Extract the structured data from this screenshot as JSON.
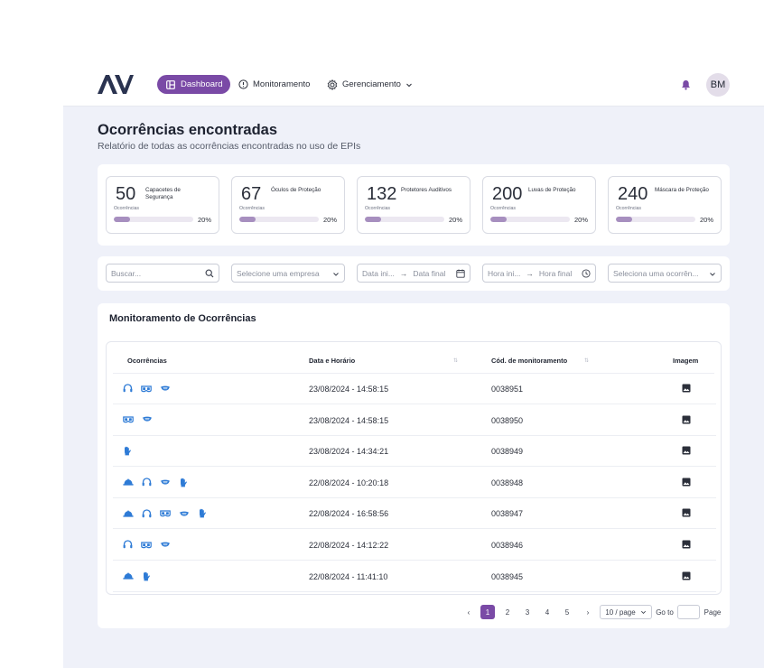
{
  "brand": {
    "logo": "AV",
    "accent": "#7a4aa6",
    "icon_color": "#2e7bd6"
  },
  "nav": {
    "dashboard": "Dashboard",
    "monitoramento": "Monitoramento",
    "gerenciamento": "Gerenciamento",
    "user_initials": "BM"
  },
  "page": {
    "title": "Ocorrências encontradas",
    "subtitle": "Relatório de todas as ocorrências encontradas no uso de EPIs"
  },
  "stats": [
    {
      "value": "50",
      "label": "Capacetes de Segurança",
      "sub": "Ocorrências",
      "percent": "20%",
      "fill": 0.2
    },
    {
      "value": "67",
      "label": "Óculos de Proteção",
      "sub": "Ocorrências",
      "percent": "20%",
      "fill": 0.2
    },
    {
      "value": "132",
      "label": "Protetores Auditivos",
      "sub": "Ocorrências",
      "percent": "20%",
      "fill": 0.2
    },
    {
      "value": "200",
      "label": "Luvas de Proteção",
      "sub": "Ocorrências",
      "percent": "20%",
      "fill": 0.2
    },
    {
      "value": "240",
      "label": "Máscara de Proteção",
      "sub": "Ocorrências",
      "percent": "20%",
      "fill": 0.2
    }
  ],
  "filters": {
    "search_placeholder": "Buscar...",
    "company_placeholder": "Selecione uma empresa",
    "date_start": "Data ini...",
    "date_end": "Data final",
    "time_start": "Hora ini...",
    "time_end": "Hora final",
    "occurrence_placeholder": "Seleciona uma ocorrên..."
  },
  "table": {
    "title": "Monitoramento de Ocorrências",
    "headers": {
      "ocorrencias": "Ocorrências",
      "data": "Data e Horário",
      "codigo": "Cód. de monitoramento",
      "imagem": "Imagem"
    },
    "rows": [
      {
        "icons": [
          "headphones-icon",
          "goggles-icon",
          "mask-icon"
        ],
        "datetime": "23/08/2024 - 14:58:15",
        "code": "0038951"
      },
      {
        "icons": [
          "goggles-icon",
          "mask-icon"
        ],
        "datetime": "23/08/2024 - 14:58:15",
        "code": "0038950"
      },
      {
        "icons": [
          "glove-icon"
        ],
        "datetime": "23/08/2024 - 14:34:21",
        "code": "0038949"
      },
      {
        "icons": [
          "helmet-icon",
          "headphones-icon",
          "mask-icon",
          "glove-icon"
        ],
        "datetime": "22/08/2024 - 10:20:18",
        "code": "0038948"
      },
      {
        "icons": [
          "helmet-icon",
          "headphones-icon",
          "goggles-icon",
          "mask-icon",
          "glove-icon"
        ],
        "datetime": "22/08/2024 - 16:58:56",
        "code": "0038947"
      },
      {
        "icons": [
          "headphones-icon",
          "goggles-icon",
          "mask-icon"
        ],
        "datetime": "22/08/2024 - 14:12:22",
        "code": "0038946"
      },
      {
        "icons": [
          "helmet-icon",
          "glove-icon"
        ],
        "datetime": "22/08/2024 - 11:41:10",
        "code": "0038945"
      }
    ]
  },
  "pagination": {
    "pages": [
      "1",
      "2",
      "3",
      "4",
      "5"
    ],
    "active": "1",
    "page_size": "10 / page",
    "goto_label": "Go to",
    "page_label": "Page"
  }
}
